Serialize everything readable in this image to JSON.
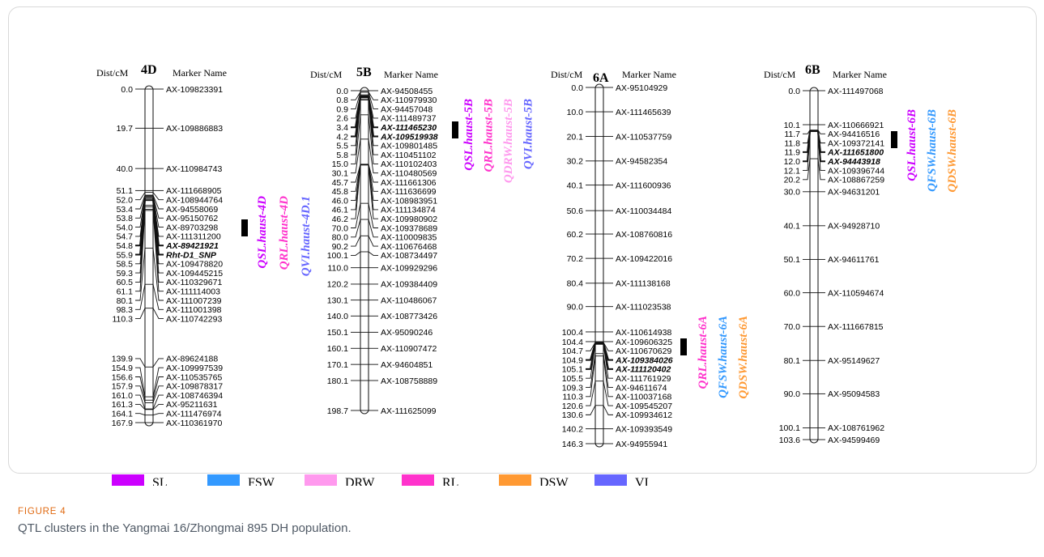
{
  "figure": {
    "label": "FIGURE 4",
    "caption": "QTL clusters in the Yangmai 16/Zhongmai 895 DH population.",
    "header_dist": "Dist/cM",
    "header_marker": "Marker Name"
  },
  "chromosomes": [
    {
      "name": "4D",
      "length": 167.9,
      "markers": [
        {
          "pos": "0.0",
          "name": "AX-109823391"
        },
        {
          "pos": "19.7",
          "name": "AX-109886883"
        },
        {
          "pos": "40.0",
          "name": "AX-110984743"
        },
        {
          "pos": "51.1",
          "name": "AX-111668905"
        },
        {
          "pos": "52.0",
          "name": "AX-108944764"
        },
        {
          "pos": "53.4",
          "name": "AX-94558069"
        },
        {
          "pos": "53.8",
          "name": "AX-95150762"
        },
        {
          "pos": "54.0",
          "name": "AX-89703298"
        },
        {
          "pos": "54.7",
          "name": "AX-111311200"
        },
        {
          "pos": "54.8",
          "name": "AX-89421921",
          "bold": true
        },
        {
          "pos": "55.9",
          "name": "Rht-D1_SNP",
          "bold": true
        },
        {
          "pos": "58.5",
          "name": "AX-109478820"
        },
        {
          "pos": "59.3",
          "name": "AX-109445215"
        },
        {
          "pos": "60.5",
          "name": "AX-110329671"
        },
        {
          "pos": "61.1",
          "name": "AX-111114003"
        },
        {
          "pos": "80.1",
          "name": "AX-111007239"
        },
        {
          "pos": "98.3",
          "name": "AX-111001398"
        },
        {
          "pos": "110.3",
          "name": "AX-110742293"
        },
        {
          "pos": "139.9",
          "name": "AX-89624188"
        },
        {
          "pos": "154.9",
          "name": "AX-109997539"
        },
        {
          "pos": "156.6",
          "name": "AX-110535765"
        },
        {
          "pos": "157.9",
          "name": "AX-109878317"
        },
        {
          "pos": "161.0",
          "name": "AX-108746394"
        },
        {
          "pos": "161.3",
          "name": "AX-95211631"
        },
        {
          "pos": "164.1",
          "name": "AX-111476974"
        },
        {
          "pos": "167.9",
          "name": "AX-110361970"
        }
      ],
      "qtl_span": [
        54.8,
        55.9
      ],
      "qtls": [
        {
          "name": "QSL.haust-4D",
          "trait": "SL"
        },
        {
          "name": "QRL.haust-4D",
          "trait": "RL"
        },
        {
          "name": "QVI.haust-4D.1",
          "trait": "VI"
        }
      ]
    },
    {
      "name": "5B",
      "length": 198.7,
      "markers": [
        {
          "pos": "0.0",
          "name": "AX-94508455"
        },
        {
          "pos": "0.8",
          "name": "AX-110979930"
        },
        {
          "pos": "0.9",
          "name": "AX-94457048"
        },
        {
          "pos": "2.6",
          "name": "AX-111489737"
        },
        {
          "pos": "3.4",
          "name": "AX-111465230",
          "bold": true
        },
        {
          "pos": "4.2",
          "name": "AX-109519938",
          "bold": true
        },
        {
          "pos": "5.5",
          "name": "AX-109801485"
        },
        {
          "pos": "5.8",
          "name": "AX-110451102"
        },
        {
          "pos": "15.0",
          "name": "AX-110102403"
        },
        {
          "pos": "30.1",
          "name": "AX-110480569"
        },
        {
          "pos": "45.7",
          "name": "AX-111661306"
        },
        {
          "pos": "45.8",
          "name": "AX-111636699"
        },
        {
          "pos": "46.0",
          "name": "AX-108983951"
        },
        {
          "pos": "46.1",
          "name": "AX-111134874"
        },
        {
          "pos": "46.2",
          "name": "AX-109980902"
        },
        {
          "pos": "70.0",
          "name": "AX-109378689"
        },
        {
          "pos": "80.0",
          "name": "AX-110009835"
        },
        {
          "pos": "90.2",
          "name": "AX-110676468"
        },
        {
          "pos": "100.1",
          "name": "AX-108734497"
        },
        {
          "pos": "110.0",
          "name": "AX-109929296"
        },
        {
          "pos": "120.2",
          "name": "AX-109384409"
        },
        {
          "pos": "130.1",
          "name": "AX-110486067"
        },
        {
          "pos": "140.0",
          "name": "AX-108773426"
        },
        {
          "pos": "150.1",
          "name": "AX-95090246"
        },
        {
          "pos": "160.1",
          "name": "AX-110907472"
        },
        {
          "pos": "170.1",
          "name": "AX-94604851"
        },
        {
          "pos": "180.1",
          "name": "AX-108758889"
        },
        {
          "pos": "198.7",
          "name": "AX-111625099"
        }
      ],
      "qtl_span": [
        3.4,
        4.2
      ],
      "qtls": [
        {
          "name": "QSL.haust-5B",
          "trait": "SL"
        },
        {
          "name": "QRL.haust-5B",
          "trait": "RL"
        },
        {
          "name": "QDRW.haust-5B",
          "trait": "DRW"
        },
        {
          "name": "QVI.haust-5B",
          "trait": "VI"
        }
      ]
    },
    {
      "name": "6A",
      "length": 146.3,
      "markers": [
        {
          "pos": "0.0",
          "name": "AX-95104929"
        },
        {
          "pos": "10.0",
          "name": "AX-111465639"
        },
        {
          "pos": "20.1",
          "name": "AX-110537759"
        },
        {
          "pos": "30.2",
          "name": "AX-94582354"
        },
        {
          "pos": "40.1",
          "name": "AX-111600936"
        },
        {
          "pos": "50.6",
          "name": "AX-110034484"
        },
        {
          "pos": "60.2",
          "name": "AX-108760816"
        },
        {
          "pos": "70.2",
          "name": "AX-109422016"
        },
        {
          "pos": "80.4",
          "name": "AX-111138168"
        },
        {
          "pos": "90.0",
          "name": "AX-111023538"
        },
        {
          "pos": "100.4",
          "name": "AX-110614938"
        },
        {
          "pos": "104.4",
          "name": "AX-109606325"
        },
        {
          "pos": "104.7",
          "name": "AX-110670629"
        },
        {
          "pos": "104.9",
          "name": "AX-109384026",
          "bold": true
        },
        {
          "pos": "105.1",
          "name": "AX-111120402",
          "bold": true
        },
        {
          "pos": "105.5",
          "name": "AX-111761929"
        },
        {
          "pos": "109.3",
          "name": "AX-94611674"
        },
        {
          "pos": "110.3",
          "name": "AX-110037168"
        },
        {
          "pos": "120.6",
          "name": "AX-109545207"
        },
        {
          "pos": "130.6",
          "name": "AX-109934612"
        },
        {
          "pos": "140.2",
          "name": "AX-109393549"
        },
        {
          "pos": "146.3",
          "name": "AX-94955941"
        }
      ],
      "qtl_span": [
        104.9,
        105.1
      ],
      "qtls": [
        {
          "name": "QRL.haust-6A",
          "trait": "RL"
        },
        {
          "name": "QFSW.haust-6A",
          "trait": "FSW"
        },
        {
          "name": "QDSW.haust-6A",
          "trait": "DSW"
        }
      ]
    },
    {
      "name": "6B",
      "length": 103.6,
      "markers": [
        {
          "pos": "0.0",
          "name": "AX-111497068"
        },
        {
          "pos": "10.1",
          "name": "AX-110666921"
        },
        {
          "pos": "11.7",
          "name": "AX-94416516"
        },
        {
          "pos": "11.8",
          "name": "AX-109372141"
        },
        {
          "pos": "11.9",
          "name": "AX-111651800",
          "bold": true
        },
        {
          "pos": "12.0",
          "name": "AX-94443918",
          "bold": true
        },
        {
          "pos": "12.1",
          "name": "AX-109396744"
        },
        {
          "pos": "20.2",
          "name": "AX-108867259"
        },
        {
          "pos": "30.0",
          "name": "AX-94631201"
        },
        {
          "pos": "40.1",
          "name": "AX-94928710"
        },
        {
          "pos": "50.1",
          "name": "AX-94611761"
        },
        {
          "pos": "60.0",
          "name": "AX-110594674"
        },
        {
          "pos": "70.0",
          "name": "AX-111667815"
        },
        {
          "pos": "80.1",
          "name": "AX-95149627"
        },
        {
          "pos": "90.0",
          "name": "AX-95094583"
        },
        {
          "pos": "100.1",
          "name": "AX-108761962"
        },
        {
          "pos": "103.6",
          "name": "AX-94599469"
        }
      ],
      "qtl_span": [
        11.9,
        12.0
      ],
      "qtls": [
        {
          "name": "QSL.haust-6B",
          "trait": "SL"
        },
        {
          "name": "QFSW.haust-6B",
          "trait": "FSW"
        },
        {
          "name": "QDSW.haust-6B",
          "trait": "DSW"
        }
      ]
    }
  ],
  "legend": [
    {
      "trait": "SL",
      "color": "#cc00ff"
    },
    {
      "trait": "FSW",
      "color": "#3399ff"
    },
    {
      "trait": "DRW",
      "color": "#ff99ee"
    },
    {
      "trait": "RL",
      "color": "#ff33cc"
    },
    {
      "trait": "DSW",
      "color": "#ff9933"
    },
    {
      "trait": "VI",
      "color": "#6666ff"
    }
  ]
}
